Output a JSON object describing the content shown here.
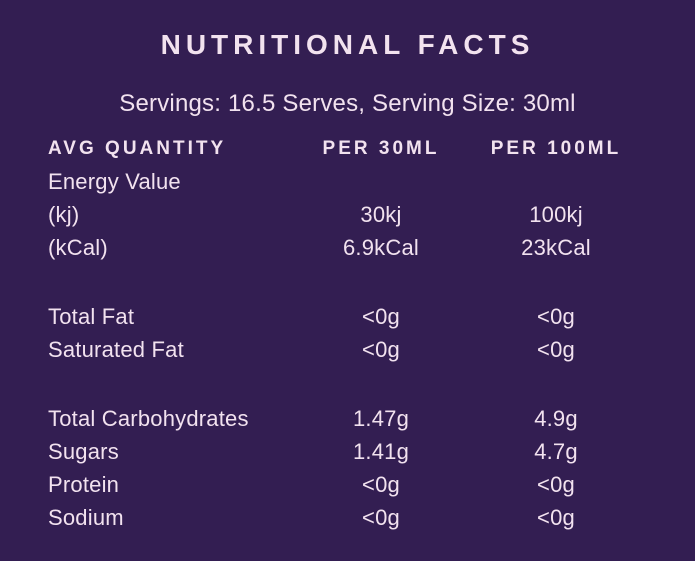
{
  "title": "NUTRITIONAL FACTS",
  "servings_line": "Servings: 16.5 Serves, Serving Size: 30ml",
  "table": {
    "headers": [
      "AVG QUANTITY",
      "PER 30ML",
      "PER 100ML"
    ],
    "rows": [
      {
        "label": "Energy Value",
        "per_30ml": "",
        "per_100ml": ""
      },
      {
        "label": "(kj)",
        "per_30ml": "30kj",
        "per_100ml": "100kj"
      },
      {
        "label": "(kCal)",
        "per_30ml": "6.9kCal",
        "per_100ml": "23kCal"
      },
      {
        "label": "Total Fat",
        "per_30ml": "<0g",
        "per_100ml": "<0g",
        "gap_before": true
      },
      {
        "label": "Saturated Fat",
        "per_30ml": "<0g",
        "per_100ml": "<0g"
      },
      {
        "label": "Total Carbohydrates",
        "per_30ml": "1.47g",
        "per_100ml": "4.9g",
        "gap_before": true
      },
      {
        "label": "Sugars",
        "per_30ml": "1.41g",
        "per_100ml": "4.7g"
      },
      {
        "label": "Protein",
        "per_30ml": "<0g",
        "per_100ml": "<0g"
      },
      {
        "label": "Sodium",
        "per_30ml": "<0g",
        "per_100ml": "<0g"
      }
    ]
  },
  "colors": {
    "background": "#331e52",
    "text": "#f2e2ef"
  }
}
